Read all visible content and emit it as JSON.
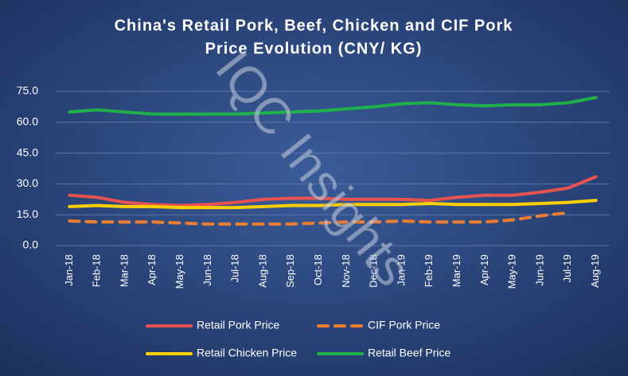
{
  "chart_data": {
    "type": "line",
    "title": [
      "China's Retail Pork, Beef, Chicken and CIF Pork",
      "Price Evolution (CNY/ KG)"
    ],
    "watermark": "IQC Insights",
    "categories": [
      "Jan-18",
      "Feb-18",
      "Mar-18",
      "Apr-18",
      "May-18",
      "Jun-18",
      "Jul-18",
      "Aug-18",
      "Sep-18",
      "Oct-18",
      "Nov-18",
      "Dec-18",
      "Jan-19",
      "Feb-19",
      "Mar-19",
      "Apr-19",
      "May-19",
      "Jun-19",
      "Jul-19",
      "Aug-19"
    ],
    "ylim": [
      0,
      75
    ],
    "yticks": [
      {
        "value": 0,
        "label": "0.0"
      },
      {
        "value": 15,
        "label": "15.0"
      },
      {
        "value": 30,
        "label": "30.0"
      },
      {
        "value": 45,
        "label": "45.0"
      },
      {
        "value": 60,
        "label": "60.0"
      },
      {
        "value": 75,
        "label": "75.0"
      }
    ],
    "grid": true,
    "legend": "bottom",
    "series": [
      {
        "name": "Retail Pork Price",
        "color": "#e8534f",
        "dash": false,
        "values": [
          24.5,
          23.5,
          21,
          20,
          19.5,
          20,
          21,
          22.5,
          23,
          23,
          22.5,
          22.5,
          22.5,
          22,
          23.5,
          24.5,
          24.5,
          26,
          28,
          33.5
        ]
      },
      {
        "name": "CIF Pork Price",
        "color": "#ed7d31",
        "dash": true,
        "values": [
          12,
          11.5,
          11.5,
          11.5,
          11,
          10.5,
          10.5,
          10.5,
          10.5,
          11,
          11.5,
          11.5,
          12,
          11.5,
          11.5,
          11.5,
          12.5,
          14.5,
          16,
          null
        ]
      },
      {
        "name": "Retail Chicken Price",
        "color": "#ffd000",
        "dash": false,
        "values": [
          19,
          19.5,
          19,
          19,
          18.5,
          18.5,
          18.5,
          19,
          19.5,
          19.5,
          20,
          20,
          20,
          20.5,
          20,
          20,
          20,
          20.5,
          21,
          22
        ]
      },
      {
        "name": "Retail Beef Price",
        "color": "#1fb04a",
        "dash": false,
        "values": [
          65,
          66,
          65,
          64,
          64,
          64,
          64,
          64.5,
          65,
          65.5,
          66.5,
          67.5,
          69,
          69.5,
          68.5,
          68,
          68.5,
          68.5,
          69.5,
          72
        ]
      }
    ]
  }
}
